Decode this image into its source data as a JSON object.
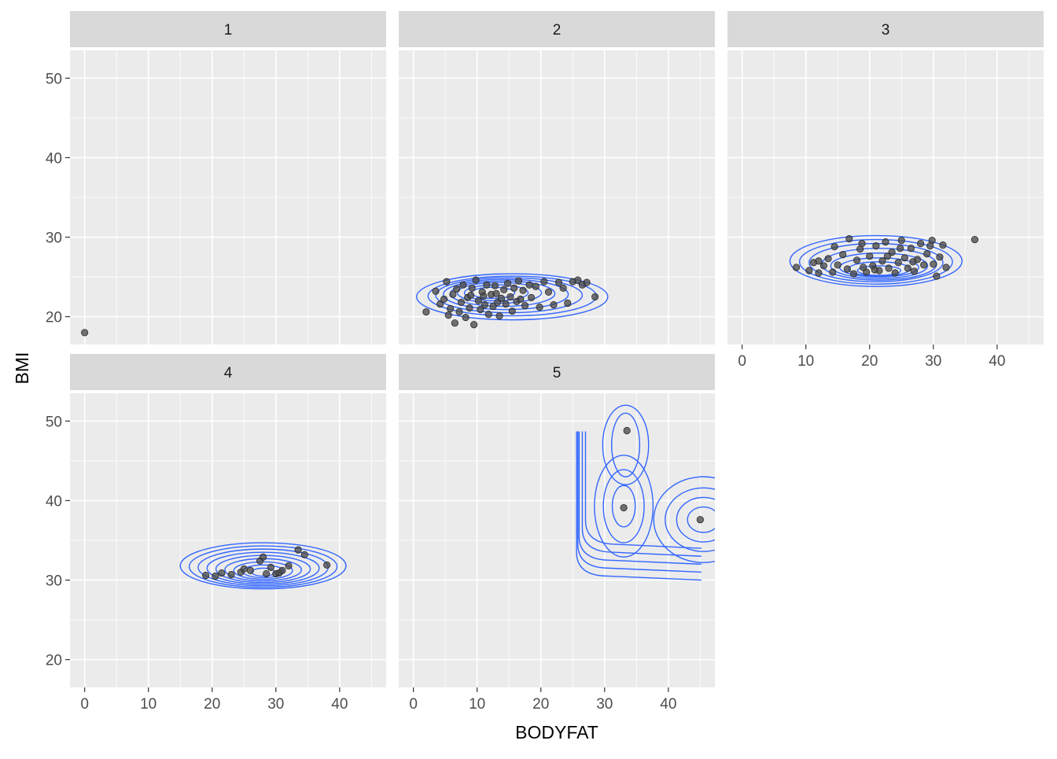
{
  "chart_data": {
    "type": "scatter",
    "title": "",
    "xlabel": "BODYFAT",
    "ylabel": "BMI",
    "xlim": [
      -2.3,
      47.3
    ],
    "ylim": [
      16.5,
      53.5
    ],
    "x_ticks": [
      0,
      10,
      20,
      30,
      40
    ],
    "y_ticks": [
      20,
      30,
      40,
      50
    ],
    "x_tick_labels": [
      "0",
      "10",
      "20",
      "30",
      "40"
    ],
    "y_tick_labels": [
      "20",
      "30",
      "40",
      "50"
    ],
    "grid": true,
    "legend": "none",
    "facets": [
      {
        "label": "1",
        "points": [
          [
            0.0,
            18.0
          ]
        ],
        "contours": []
      },
      {
        "label": "2",
        "points": [
          [
            2.0,
            20.6
          ],
          [
            3.5,
            23.2
          ],
          [
            4.2,
            21.6
          ],
          [
            4.8,
            22.2
          ],
          [
            5.2,
            24.4
          ],
          [
            5.5,
            20.2
          ],
          [
            5.8,
            21.0
          ],
          [
            6.2,
            22.8
          ],
          [
            6.5,
            19.2
          ],
          [
            6.8,
            23.5
          ],
          [
            7.2,
            20.6
          ],
          [
            7.5,
            21.8
          ],
          [
            7.8,
            24.0
          ],
          [
            8.2,
            19.9
          ],
          [
            8.5,
            22.4
          ],
          [
            8.8,
            21.1
          ],
          [
            9.2,
            23.6
          ],
          [
            9.5,
            19.0
          ],
          [
            9.8,
            24.6
          ],
          [
            10.2,
            22.0
          ],
          [
            10.5,
            20.9
          ],
          [
            10.8,
            23.1
          ],
          [
            11.2,
            21.5
          ],
          [
            11.5,
            24.0
          ],
          [
            11.8,
            20.3
          ],
          [
            12.2,
            22.8
          ],
          [
            12.5,
            21.3
          ],
          [
            12.8,
            23.9
          ],
          [
            13.2,
            21.8
          ],
          [
            13.5,
            20.1
          ],
          [
            13.8,
            22.3
          ],
          [
            14.2,
            23.4
          ],
          [
            14.5,
            21.6
          ],
          [
            14.8,
            24.2
          ],
          [
            15.2,
            22.5
          ],
          [
            15.5,
            20.7
          ],
          [
            15.8,
            23.6
          ],
          [
            16.2,
            21.9
          ],
          [
            16.5,
            24.5
          ],
          [
            16.8,
            22.2
          ],
          [
            17.2,
            23.3
          ],
          [
            17.5,
            21.4
          ],
          [
            18.2,
            24.0
          ],
          [
            18.5,
            22.4
          ],
          [
            19.2,
            23.8
          ],
          [
            19.8,
            21.2
          ],
          [
            20.5,
            24.4
          ],
          [
            21.2,
            23.1
          ],
          [
            22.0,
            21.5
          ],
          [
            22.8,
            24.3
          ],
          [
            23.5,
            23.6
          ],
          [
            24.2,
            21.7
          ],
          [
            25.0,
            24.4
          ],
          [
            25.8,
            24.6
          ],
          [
            26.5,
            24.0
          ],
          [
            27.2,
            24.3
          ],
          [
            28.5,
            22.5
          ],
          [
            9.0,
            22.7
          ],
          [
            11.0,
            22.6
          ],
          [
            13.0,
            22.9
          ]
        ],
        "contours": [
          {
            "cx": 15.5,
            "cy": 22.5,
            "rx": 15.0,
            "ry": 2.9
          },
          {
            "cx": 15.5,
            "cy": 22.6,
            "rx": 13.2,
            "ry": 2.5
          },
          {
            "cx": 15.0,
            "cy": 22.7,
            "rx": 11.5,
            "ry": 2.2
          },
          {
            "cx": 14.5,
            "cy": 22.8,
            "rx": 9.8,
            "ry": 1.9
          },
          {
            "cx": 14.0,
            "cy": 22.9,
            "rx": 8.2,
            "ry": 1.6
          },
          {
            "cx": 13.5,
            "cy": 23.0,
            "rx": 6.6,
            "ry": 1.3
          },
          {
            "cx": 13.0,
            "cy": 23.0,
            "rx": 5.0,
            "ry": 1.0
          },
          {
            "cx": 12.5,
            "cy": 23.0,
            "rx": 3.4,
            "ry": 0.7
          }
        ]
      },
      {
        "label": "3",
        "points": [
          [
            8.5,
            26.2
          ],
          [
            10.5,
            25.8
          ],
          [
            11.2,
            26.8
          ],
          [
            12.0,
            25.5
          ],
          [
            12.8,
            26.4
          ],
          [
            13.5,
            27.3
          ],
          [
            14.2,
            25.6
          ],
          [
            15.0,
            26.5
          ],
          [
            15.8,
            27.8
          ],
          [
            16.5,
            26.0
          ],
          [
            16.8,
            29.8
          ],
          [
            17.5,
            25.4
          ],
          [
            18.0,
            27.1
          ],
          [
            18.5,
            28.5
          ],
          [
            19.0,
            26.2
          ],
          [
            19.5,
            25.6
          ],
          [
            20.0,
            27.6
          ],
          [
            20.5,
            26.4
          ],
          [
            21.0,
            28.9
          ],
          [
            21.5,
            25.8
          ],
          [
            22.0,
            27.0
          ],
          [
            22.5,
            29.4
          ],
          [
            23.0,
            26.1
          ],
          [
            23.5,
            28.1
          ],
          [
            24.0,
            25.5
          ],
          [
            24.5,
            26.8
          ],
          [
            25.0,
            29.6
          ],
          [
            25.5,
            27.4
          ],
          [
            26.0,
            26.1
          ],
          [
            26.5,
            28.6
          ],
          [
            27.0,
            25.7
          ],
          [
            27.5,
            27.2
          ],
          [
            28.0,
            29.2
          ],
          [
            28.5,
            26.5
          ],
          [
            29.0,
            27.9
          ],
          [
            29.5,
            28.9
          ],
          [
            30.0,
            26.6
          ],
          [
            30.5,
            25.1
          ],
          [
            31.0,
            27.5
          ],
          [
            31.5,
            29.0
          ],
          [
            32.0,
            26.2
          ],
          [
            36.5,
            29.7
          ],
          [
            14.5,
            28.8
          ],
          [
            18.8,
            29.2
          ],
          [
            24.8,
            28.6
          ],
          [
            29.8,
            29.6
          ],
          [
            12.0,
            27.0
          ],
          [
            20.8,
            25.9
          ],
          [
            26.8,
            26.9
          ],
          [
            22.8,
            27.6
          ]
        ],
        "contours": [
          {
            "cx": 21.0,
            "cy": 27.0,
            "rx": 13.5,
            "ry": 3.2
          },
          {
            "cx": 21.0,
            "cy": 26.9,
            "rx": 12.0,
            "ry": 2.8
          },
          {
            "cx": 21.0,
            "cy": 26.8,
            "rx": 10.5,
            "ry": 2.4
          },
          {
            "cx": 21.5,
            "cy": 26.6,
            "rx": 9.0,
            "ry": 2.0
          },
          {
            "cx": 21.5,
            "cy": 26.4,
            "rx": 7.6,
            "ry": 1.6
          },
          {
            "cx": 21.5,
            "cy": 26.2,
            "rx": 6.2,
            "ry": 1.2
          },
          {
            "cx": 21.5,
            "cy": 26.0,
            "rx": 4.8,
            "ry": 0.9
          },
          {
            "cx": 21.5,
            "cy": 25.8,
            "rx": 3.4,
            "ry": 0.6
          }
        ]
      },
      {
        "label": "4",
        "points": [
          [
            19.0,
            30.6
          ],
          [
            20.5,
            30.5
          ],
          [
            21.5,
            30.9
          ],
          [
            23.0,
            30.7
          ],
          [
            24.5,
            31.0
          ],
          [
            26.0,
            31.2
          ],
          [
            27.5,
            32.4
          ],
          [
            28.5,
            30.8
          ],
          [
            29.2,
            31.6
          ],
          [
            30.0,
            30.8
          ],
          [
            31.0,
            31.2
          ],
          [
            32.0,
            31.8
          ],
          [
            33.5,
            33.8
          ],
          [
            34.5,
            33.2
          ],
          [
            38.0,
            31.9
          ],
          [
            25.0,
            31.4
          ],
          [
            30.5,
            30.9
          ],
          [
            28.0,
            32.9
          ]
        ],
        "contours": [
          {
            "cx": 28.0,
            "cy": 31.8,
            "rx": 13.0,
            "ry": 2.9
          },
          {
            "cx": 28.0,
            "cy": 31.7,
            "rx": 11.6,
            "ry": 2.6
          },
          {
            "cx": 28.0,
            "cy": 31.6,
            "rx": 10.2,
            "ry": 2.3
          },
          {
            "cx": 28.0,
            "cy": 31.5,
            "rx": 8.8,
            "ry": 2.0
          },
          {
            "cx": 28.0,
            "cy": 31.4,
            "rx": 7.4,
            "ry": 1.7
          },
          {
            "cx": 28.0,
            "cy": 31.3,
            "rx": 6.0,
            "ry": 1.4
          },
          {
            "cx": 28.0,
            "cy": 31.2,
            "rx": 4.6,
            "ry": 1.1
          },
          {
            "cx": 28.0,
            "cy": 31.1,
            "rx": 3.2,
            "ry": 0.8
          },
          {
            "cx": 28.0,
            "cy": 31.0,
            "rx": 1.8,
            "ry": 0.5
          }
        ]
      },
      {
        "label": "5",
        "points": [
          [
            33.5,
            48.8
          ],
          [
            33.0,
            39.1
          ],
          [
            45.0,
            37.6
          ]
        ],
        "contours": []
      }
    ]
  }
}
